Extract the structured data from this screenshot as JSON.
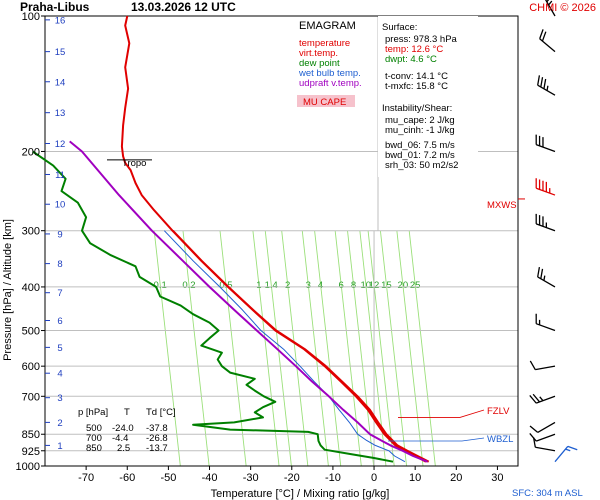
{
  "header": {
    "title": "Praha-Libus",
    "datetime": "13.03.2026 12 UTC",
    "credit": "CHMI © 2026"
  },
  "legend": {
    "title": "EMAGRAM",
    "items": [
      {
        "label": "temperature",
        "color": "#e00000"
      },
      {
        "label": "virt.temp.",
        "color": "#e00000"
      },
      {
        "label": "dew point",
        "color": "#008000"
      },
      {
        "label": "wet bulb temp.",
        "color": "#1f5fd0"
      },
      {
        "label": "udpraft v.temp.",
        "color": "#a000c0"
      }
    ],
    "badge": "MU CAPE",
    "badge_bg": "#f6c2cc"
  },
  "info": {
    "surface_title": "Surface:",
    "press": "press: 978.3 hPa",
    "temp": "temp: 12.6 °C",
    "dwpt": "dwpt: 4.6 °C",
    "tconv": "t-conv: 14.1 °C",
    "tmxfc": "t-mxfc: 15.8 °C",
    "instab_title": "Instability/Shear:",
    "mu_cape": "mu_cape: 2 J/kg",
    "mu_cinh": "mu_cinh: -1 J/kg",
    "bwd06": "bwd_06: 7.5 m/s",
    "bwd01": "bwd_01: 7.2 m/s",
    "srh03": "srh_03: 50 m2/s2"
  },
  "table": {
    "headers": [
      "p [hPa]",
      "T",
      "Td [°C]"
    ],
    "rows": [
      [
        "500",
        "-24.0",
        "-37.8"
      ],
      [
        "700",
        "-4.4",
        "-26.8"
      ],
      [
        "850",
        "2.5",
        "-13.7"
      ]
    ]
  },
  "annotations": {
    "tropo": "Tropo",
    "mxws": "MXWS",
    "fzlv": "FZLV",
    "wbzl": "WBZL",
    "sfc": "SFC: 304 m ASL"
  },
  "chart_data": {
    "type": "line",
    "title": "Praha-Libus 13.03.2026 12 UTC",
    "xlabel": "Temperature [°C] / Mixing ratio [g/kg]",
    "ylabel": "Pressure [hPa] / Altitude [km]",
    "xlim": [
      -80,
      35
    ],
    "ylim": [
      1000,
      100
    ],
    "y_scale": "log",
    "x_ticks": [
      -70,
      -60,
      -50,
      -40,
      -30,
      -20,
      -10,
      0,
      10,
      20,
      30
    ],
    "x_tick_labels": [
      "-70",
      "-60",
      "-50",
      "-40",
      "-30",
      "-20",
      "-10",
      "0",
      "10",
      "20",
      "30"
    ],
    "pressure_ticks": [
      100,
      200,
      300,
      400,
      500,
      600,
      700,
      850,
      925,
      1000
    ],
    "pressure_tick_labels": [
      "100",
      "200",
      "300",
      "400",
      "500",
      "600",
      "700",
      "850",
      "925",
      "1000"
    ],
    "altitude_ticks_km": [
      {
        "label": "1",
        "p": 900
      },
      {
        "label": "2",
        "p": 800
      },
      {
        "label": "3",
        "p": 705
      },
      {
        "label": "4",
        "p": 622
      },
      {
        "label": "5",
        "p": 545
      },
      {
        "label": "6",
        "p": 475
      },
      {
        "label": "7",
        "p": 412
      },
      {
        "label": "8",
        "p": 355
      },
      {
        "label": "9",
        "p": 305
      },
      {
        "label": "10",
        "p": 262
      },
      {
        "label": "11",
        "p": 225
      },
      {
        "label": "12",
        "p": 192
      },
      {
        "label": "13",
        "p": 164
      },
      {
        "label": "14",
        "p": 140
      },
      {
        "label": "15",
        "p": 120
      },
      {
        "label": "16",
        "p": 102
      }
    ],
    "mixing_ratio_lines": [
      {
        "label": "0.1",
        "x_at_label": -52
      },
      {
        "label": "0.2",
        "x_at_label": -45
      },
      {
        "label": "0.5",
        "x_at_label": -36
      },
      {
        "label": "1",
        "x_at_label": -28
      },
      {
        "label": "1.4",
        "x_at_label": -25
      },
      {
        "label": "2",
        "x_at_label": -21
      },
      {
        "label": "3",
        "x_at_label": -16
      },
      {
        "label": "4",
        "x_at_label": -13
      },
      {
        "label": "6",
        "x_at_label": -8
      },
      {
        "label": "8",
        "x_at_label": -5
      },
      {
        "label": "10",
        "x_at_label": -2
      },
      {
        "label": "12",
        "x_at_label": 0
      },
      {
        "label": "15",
        "x_at_label": 3
      },
      {
        "label": "20",
        "x_at_label": 7
      },
      {
        "label": "25",
        "x_at_label": 10
      }
    ],
    "mixing_ratio_label_p": 395,
    "mixing_ratio_slope": 9,
    "series": [
      {
        "name": "temperature",
        "color": "#e00000",
        "points": [
          [
            978,
            12.6
          ],
          [
            950,
            10
          ],
          [
            925,
            7.5
          ],
          [
            900,
            5.2
          ],
          [
            850,
            2.5
          ],
          [
            800,
            0.5
          ],
          [
            750,
            -1.5
          ],
          [
            700,
            -4.4
          ],
          [
            650,
            -8
          ],
          [
            600,
            -12
          ],
          [
            550,
            -17
          ],
          [
            500,
            -24
          ],
          [
            450,
            -29.5
          ],
          [
            400,
            -35.5
          ],
          [
            350,
            -42
          ],
          [
            300,
            -49
          ],
          [
            270,
            -53.5
          ],
          [
            250,
            -56.5
          ],
          [
            235,
            -58
          ],
          [
            220,
            -59.2
          ],
          [
            212,
            -60.5
          ],
          [
            205,
            -61
          ],
          [
            195,
            -61.3
          ],
          [
            175,
            -61
          ],
          [
            160,
            -60.5
          ],
          [
            145,
            -59.8
          ],
          [
            130,
            -60.5
          ],
          [
            115,
            -59.5
          ],
          [
            105,
            -60.5
          ],
          [
            100,
            -60
          ]
        ]
      },
      {
        "name": "virt.temp.",
        "color": "#e00000",
        "points": [
          [
            978,
            13.3
          ],
          [
            950,
            10.6
          ],
          [
            925,
            8.1
          ],
          [
            900,
            5.7
          ],
          [
            850,
            3
          ],
          [
            800,
            1
          ],
          [
            750,
            -1
          ],
          [
            700,
            -4
          ],
          [
            650,
            -7.7
          ],
          [
            600,
            -11.7
          ],
          [
            550,
            -16.8
          ],
          [
            500,
            -23.8
          ],
          [
            450,
            -29.4
          ],
          [
            400,
            -35.4
          ],
          [
            350,
            -41.9
          ],
          [
            300,
            -48.9
          ]
        ]
      },
      {
        "name": "dew point",
        "color": "#008000",
        "points": [
          [
            978,
            4.6
          ],
          [
            960,
            0
          ],
          [
            940,
            -6
          ],
          [
            920,
            -12
          ],
          [
            900,
            -13
          ],
          [
            880,
            -13.5
          ],
          [
            850,
            -13.7
          ],
          [
            840,
            -16
          ],
          [
            830,
            -35
          ],
          [
            810,
            -44
          ],
          [
            800,
            -34
          ],
          [
            780,
            -27
          ],
          [
            760,
            -29
          ],
          [
            740,
            -27
          ],
          [
            720,
            -24
          ],
          [
            700,
            -26.8
          ],
          [
            680,
            -29
          ],
          [
            660,
            -31
          ],
          [
            640,
            -29
          ],
          [
            620,
            -35
          ],
          [
            600,
            -37
          ],
          [
            580,
            -38
          ],
          [
            560,
            -37
          ],
          [
            540,
            -42
          ],
          [
            520,
            -40
          ],
          [
            500,
            -37.8
          ],
          [
            480,
            -40
          ],
          [
            460,
            -44
          ],
          [
            440,
            -47
          ],
          [
            420,
            -52
          ],
          [
            400,
            -53
          ],
          [
            380,
            -57
          ],
          [
            360,
            -58
          ],
          [
            340,
            -64
          ],
          [
            320,
            -69
          ],
          [
            300,
            -71
          ],
          [
            280,
            -70
          ],
          [
            260,
            -72
          ],
          [
            245,
            -76
          ],
          [
            230,
            -75
          ],
          [
            215,
            -78
          ],
          [
            200,
            -83
          ]
        ]
      },
      {
        "name": "wet bulb temp.",
        "color": "#1f5fd0",
        "points": [
          [
            978,
            7.5
          ],
          [
            950,
            5
          ],
          [
            925,
            3.6
          ],
          [
            900,
            0.3
          ],
          [
            875,
            -2
          ],
          [
            850,
            -4
          ],
          [
            800,
            -6
          ],
          [
            750,
            -8.5
          ],
          [
            700,
            -11
          ],
          [
            650,
            -14.5
          ],
          [
            600,
            -18
          ],
          [
            550,
            -22
          ],
          [
            500,
            -27.5
          ],
          [
            450,
            -32
          ],
          [
            400,
            -37.5
          ],
          [
            350,
            -44
          ],
          [
            300,
            -51
          ]
        ]
      },
      {
        "name": "udpraft v.temp.",
        "color": "#a000c0",
        "points": [
          [
            978,
            13
          ],
          [
            950,
            9.5
          ],
          [
            925,
            7
          ],
          [
            900,
            4
          ],
          [
            875,
            1.5
          ],
          [
            850,
            -1
          ],
          [
            800,
            -4
          ],
          [
            750,
            -7.5
          ],
          [
            700,
            -11
          ],
          [
            650,
            -15
          ],
          [
            600,
            -19
          ],
          [
            550,
            -23.5
          ],
          [
            500,
            -28.5
          ],
          [
            450,
            -34
          ],
          [
            400,
            -40
          ],
          [
            350,
            -46.5
          ],
          [
            300,
            -54
          ],
          [
            250,
            -62
          ],
          [
            200,
            -71
          ],
          [
            190,
            -74
          ]
        ]
      }
    ],
    "wind_profile": [
      {
        "p": 978,
        "speed_kt": 5,
        "dir": 40
      },
      {
        "p": 925,
        "speed_kt": 10,
        "dir": 280
      },
      {
        "p": 850,
        "speed_kt": 10,
        "dir": 250
      },
      {
        "p": 800,
        "speed_kt": 10,
        "dir": 240
      },
      {
        "p": 700,
        "speed_kt": 15,
        "dir": 250
      },
      {
        "p": 600,
        "speed_kt": 10,
        "dir": 260
      },
      {
        "p": 500,
        "speed_kt": 5,
        "dir": 290
      },
      {
        "p": 400,
        "speed_kt": 15,
        "dir": 300
      },
      {
        "p": 300,
        "speed_kt": 25,
        "dir": 290
      },
      {
        "p": 250,
        "speed_kt": 35,
        "dir": 290
      },
      {
        "p": 200,
        "speed_kt": 30,
        "dir": 290
      },
      {
        "p": 150,
        "speed_kt": 25,
        "dir": 300
      },
      {
        "p": 120,
        "speed_kt": 20,
        "dir": 310
      },
      {
        "p": 100,
        "speed_kt": 15,
        "dir": 330
      }
    ],
    "tropopause_p": 212,
    "mxws_p": 255,
    "fzlv_p": 780,
    "wbzl_p": 880
  }
}
